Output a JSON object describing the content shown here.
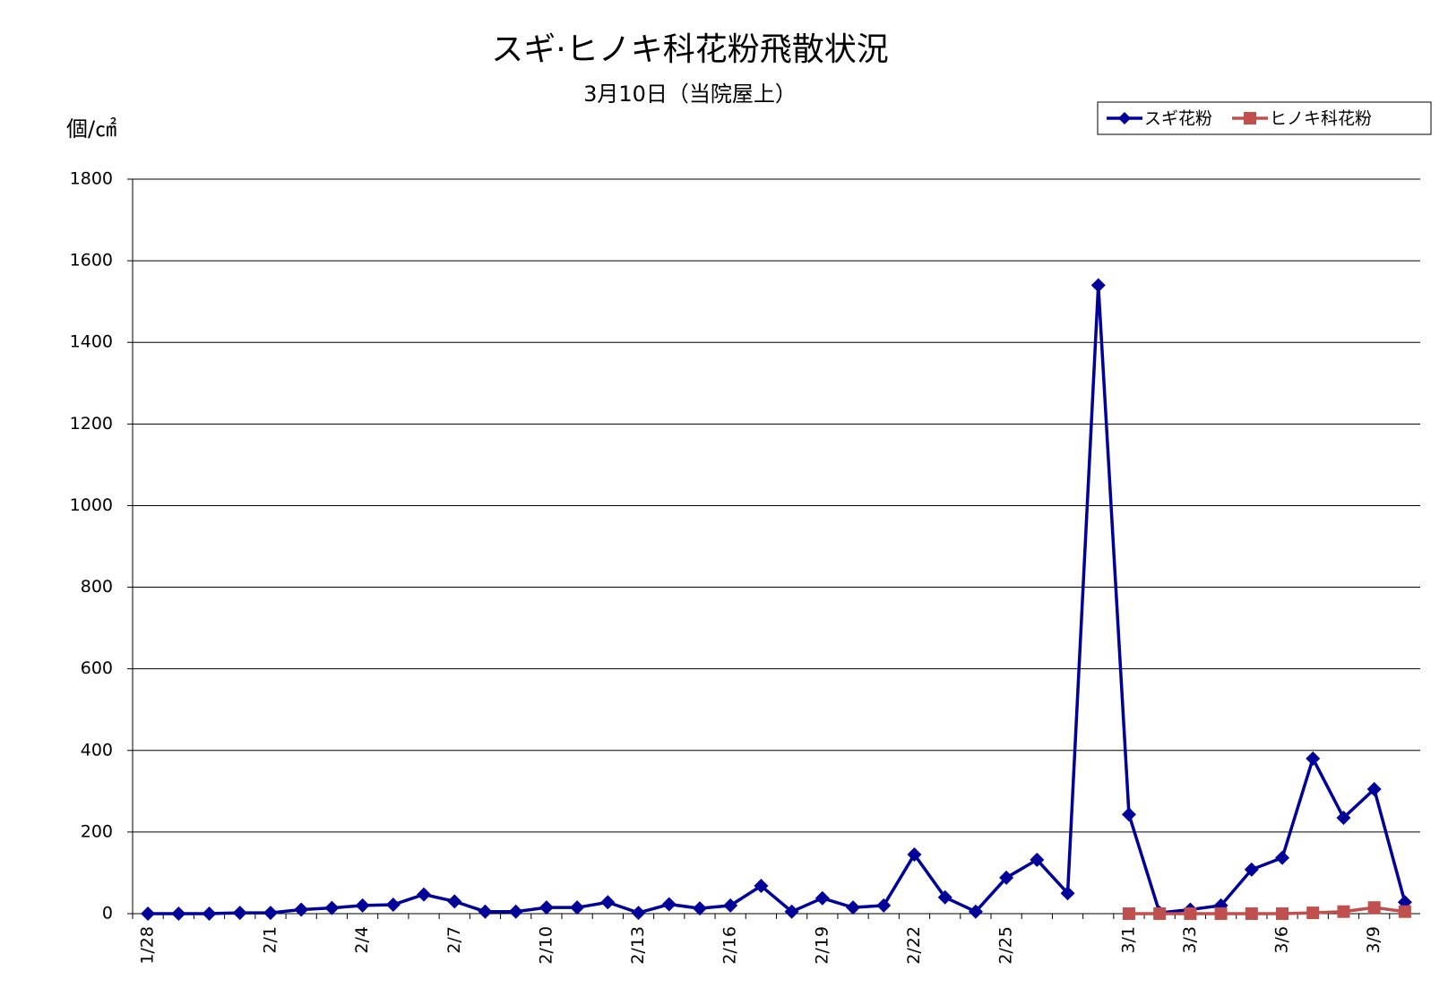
{
  "chart_data": {
    "type": "line",
    "title": "スギ·ヒノキ科花粉飛散状況",
    "subtitle": "3月10日（当院屋上）",
    "y_label": "個/㎠",
    "categories": [
      "1/28",
      null,
      null,
      null,
      "2/1",
      null,
      null,
      "2/4",
      null,
      null,
      "2/7",
      null,
      null,
      "2/10",
      null,
      null,
      "2/13",
      null,
      null,
      "2/16",
      null,
      null,
      "2/19",
      null,
      null,
      "2/22",
      null,
      null,
      "2/25",
      null,
      null,
      null,
      "3/1",
      null,
      "3/3",
      null,
      null,
      "3/6",
      null,
      null,
      "3/9",
      null
    ],
    "series": [
      {
        "name": "スギ花粉",
        "color": "#000099",
        "marker": "diamond",
        "values": [
          0,
          0,
          0,
          2,
          2,
          10,
          14,
          20,
          22,
          47,
          30,
          5,
          5,
          15,
          15,
          28,
          2,
          23,
          13,
          20,
          68,
          5,
          38,
          15,
          20,
          145,
          40,
          5,
          88,
          132,
          50,
          1540,
          243,
          2,
          10,
          20,
          108,
          137,
          380,
          235,
          305,
          28
        ]
      },
      {
        "name": "ヒノキ科花粉",
        "color": "#c0504d",
        "marker": "square",
        "values": [
          null,
          null,
          null,
          null,
          null,
          null,
          null,
          null,
          null,
          null,
          null,
          null,
          null,
          null,
          null,
          null,
          null,
          null,
          null,
          null,
          null,
          null,
          null,
          null,
          null,
          null,
          null,
          null,
          null,
          null,
          null,
          null,
          0,
          0,
          0,
          0,
          0,
          0,
          2,
          5,
          15,
          5
        ]
      }
    ],
    "ylim": [
      0,
      1800
    ],
    "yticks": [
      0,
      200,
      400,
      600,
      800,
      1000,
      1200,
      1400,
      1600,
      1800
    ],
    "grid": true,
    "legend": "top-right"
  }
}
